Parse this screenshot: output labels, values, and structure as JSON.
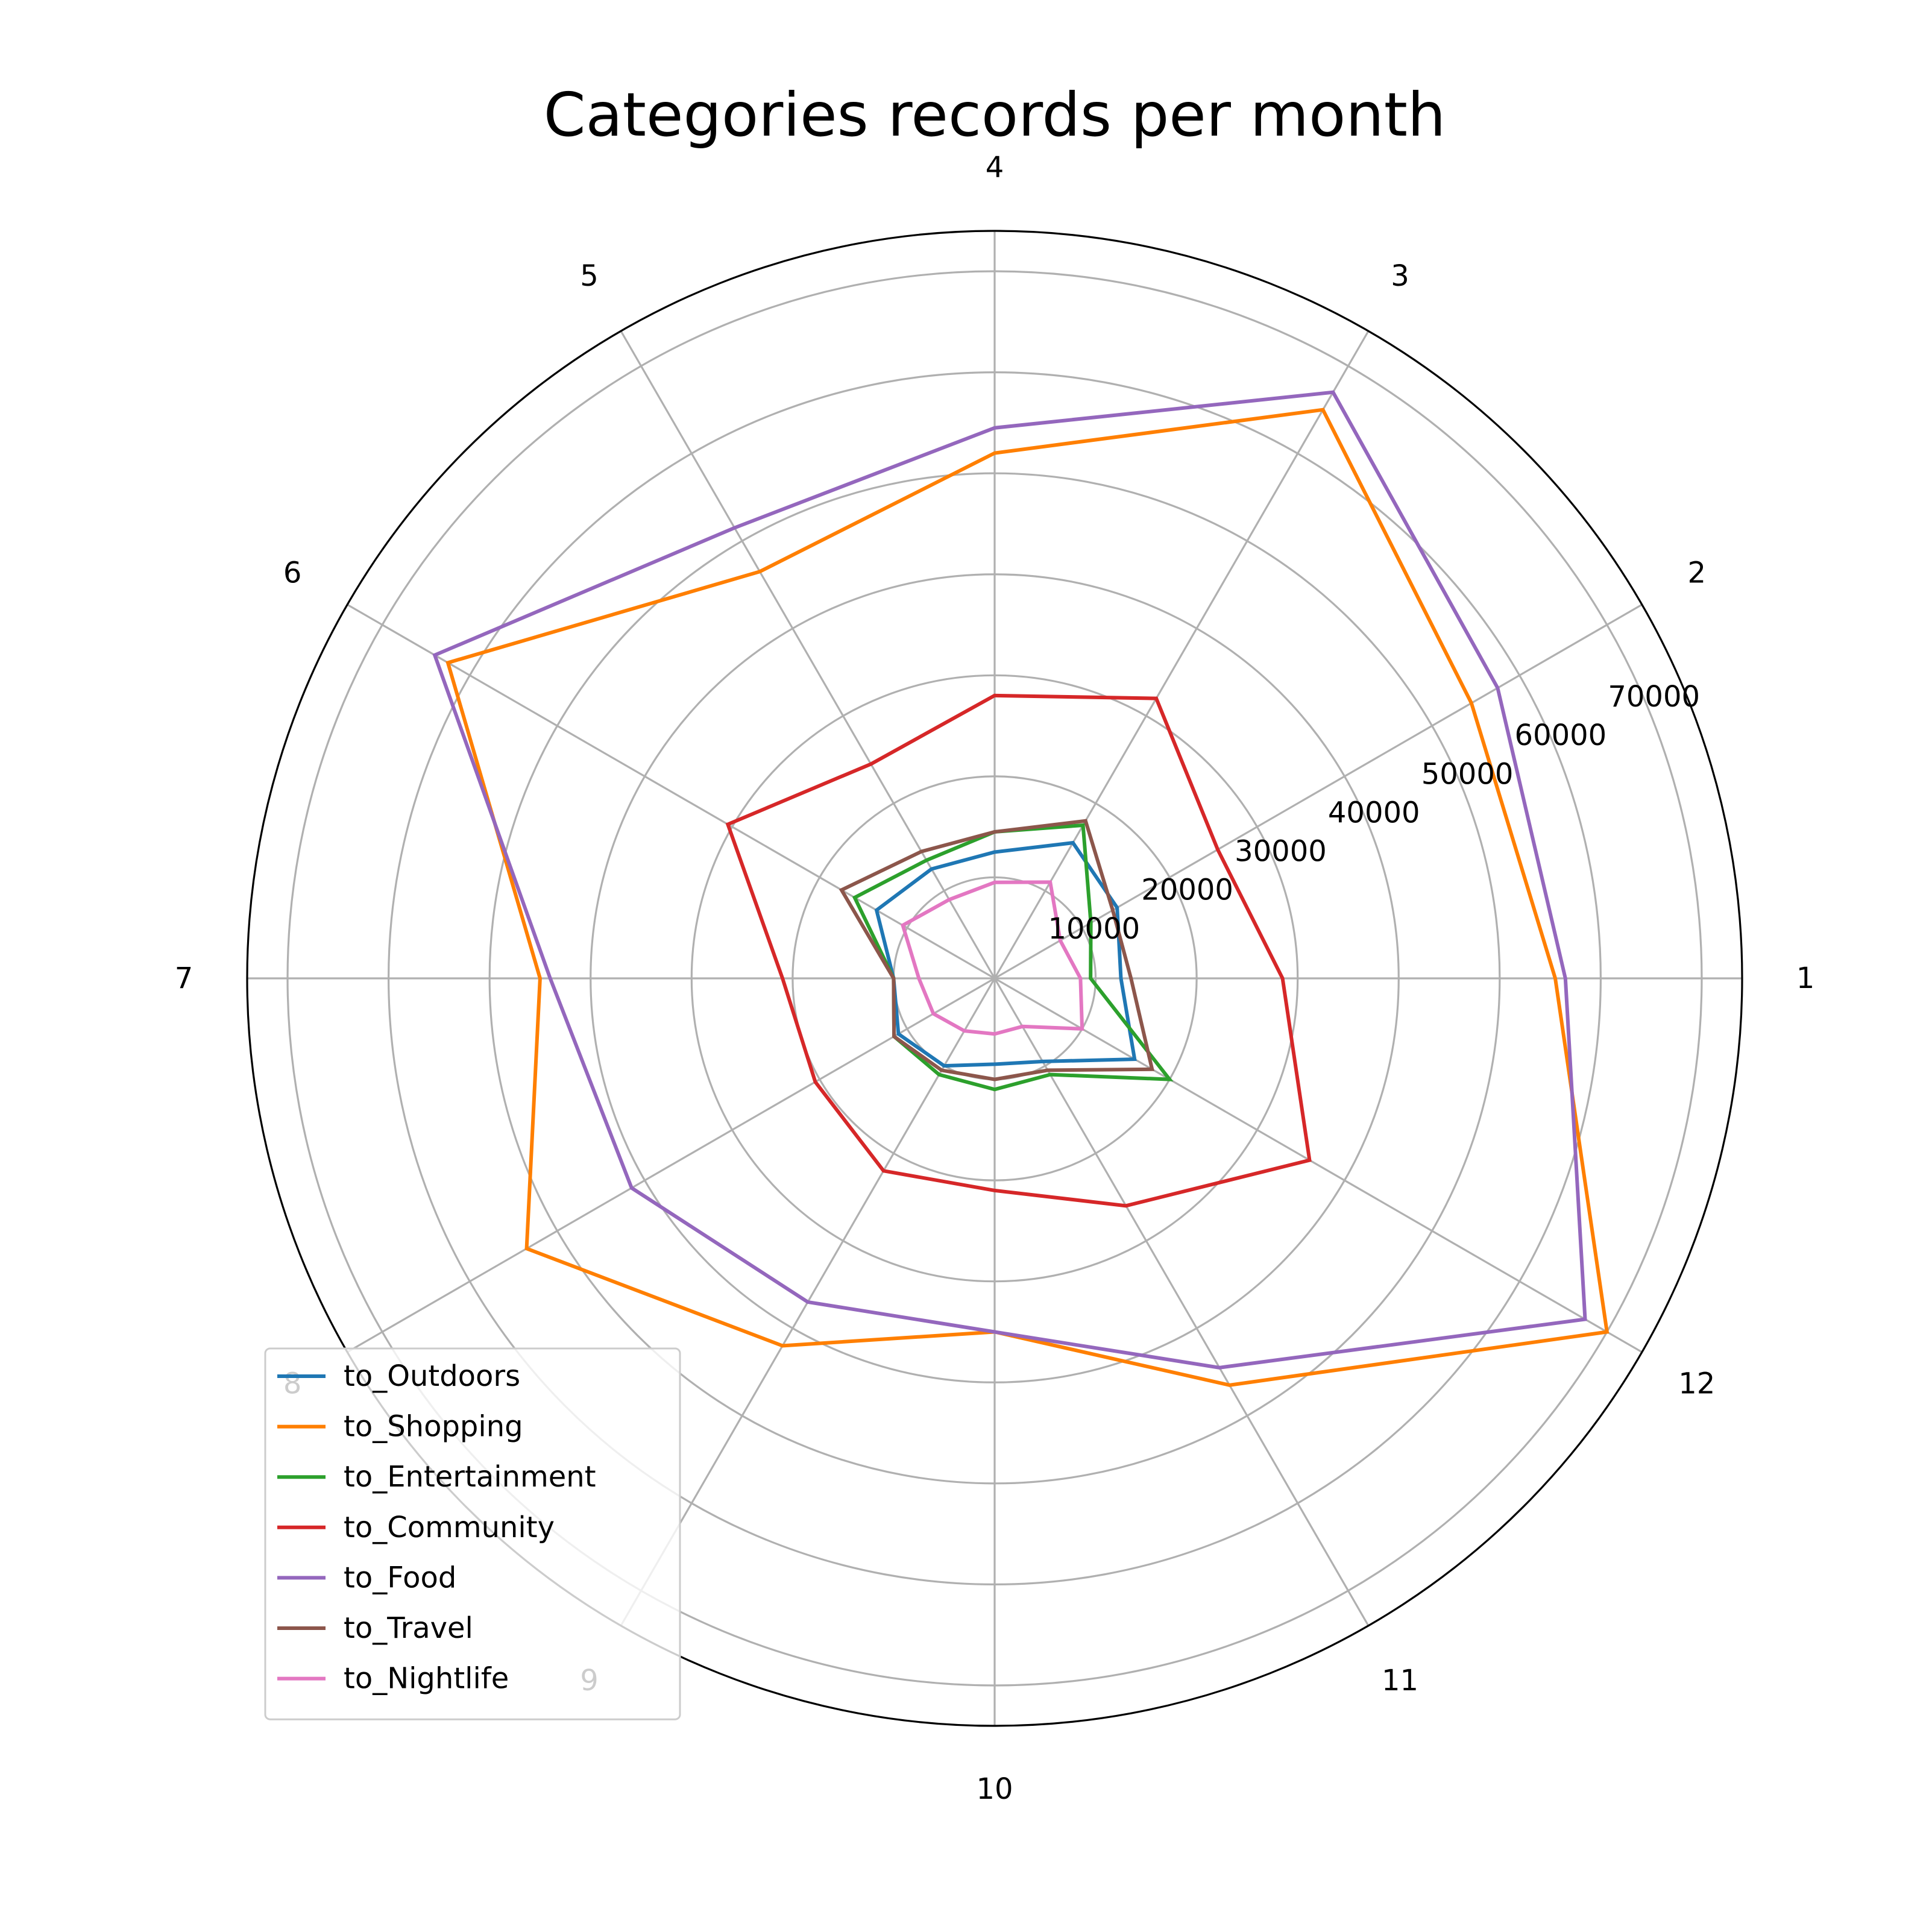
{
  "chart_data": {
    "type": "radar",
    "title": "Categories records per month",
    "categories": [
      "1",
      "2",
      "3",
      "4",
      "5",
      "6",
      "7",
      "8",
      "9",
      "10",
      "11",
      "12"
    ],
    "r_ticks": [
      "10000",
      "20000",
      "30000",
      "40000",
      "50000",
      "60000",
      "70000"
    ],
    "rlim": [
      0,
      74000
    ],
    "grid": true,
    "legend": "lower-left",
    "series": [
      {
        "name": "to_Outdoors",
        "color": "#1f77b4",
        "values": [
          12500,
          14000,
          15500,
          12500,
          12500,
          13500,
          10000,
          11000,
          10000,
          8500,
          9500,
          16000
        ]
      },
      {
        "name": "to_Entertainment",
        "color": "#2ca02c",
        "values": [
          9500,
          11000,
          17500,
          14500,
          13500,
          16000,
          10000,
          11500,
          11000,
          11000,
          11000,
          20000
        ]
      },
      {
        "name": "to_Community",
        "color": "#d62728",
        "values": [
          28500,
          25500,
          32000,
          28000,
          24500,
          30500,
          21000,
          20500,
          22000,
          21000,
          26000,
          36000
        ]
      },
      {
        "name": "to_Shopping",
        "color": "#ff7f00",
        "values": [
          55500,
          54500,
          65000,
          52000,
          46500,
          62500,
          45000,
          53500,
          42000,
          35000,
          46500,
          70000
        ]
      },
      {
        "name": "to_Food",
        "color": "#9467bd",
        "values": [
          56500,
          57500,
          67000,
          54500,
          51500,
          64000,
          44000,
          41500,
          37000,
          35000,
          44500,
          67500
        ]
      },
      {
        "name": "to_Travel",
        "color": "#8c564b",
        "values": [
          13500,
          13500,
          18000,
          14500,
          14500,
          17500,
          10000,
          11500,
          10500,
          10000,
          10500,
          18000
        ]
      },
      {
        "name": "to_Nightlife",
        "color": "#e377c2",
        "values": [
          8500,
          7500,
          11000,
          9500,
          9000,
          10500,
          7500,
          7000,
          6000,
          5500,
          5500,
          10000
        ]
      }
    ],
    "legend_order": [
      "to_Outdoors",
      "to_Shopping",
      "to_Entertainment",
      "to_Community",
      "to_Food",
      "to_Travel",
      "to_Nightlife"
    ]
  }
}
